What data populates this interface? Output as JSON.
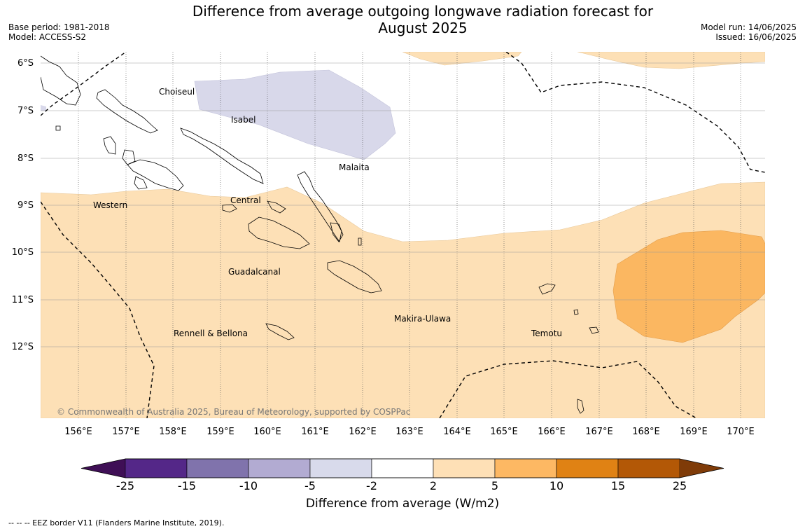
{
  "header": {
    "title_line1": "Difference from average outgoing longwave radiation forecast for",
    "title_line2": "August 2025",
    "base_period": "Base period: 1981-2018",
    "model": "Model: ACCESS-S2",
    "model_run": "Model run: 14/06/2025",
    "issued": "Issued: 16/06/2025"
  },
  "map": {
    "lat_labels": [
      "6°S",
      "7°S",
      "8°S",
      "9°S",
      "10°S",
      "11°S",
      "12°S"
    ],
    "lon_labels": [
      "156°E",
      "157°E",
      "158°E",
      "159°E",
      "160°E",
      "161°E",
      "162°E",
      "163°E",
      "164°E",
      "165°E",
      "166°E",
      "167°E",
      "168°E",
      "169°E",
      "170°E"
    ],
    "province_labels": {
      "choiseul": "Choiseul",
      "isabel": "Isabel",
      "malaita": "Malaita",
      "western": "Western",
      "central": "Central",
      "guadalcanal": "Guadalcanal",
      "makira_ulawa": "Makira-Ulawa",
      "rennell_bellona": "Rennell & Bellona",
      "temotu": "Temotu"
    },
    "copyright": "© Commonwealth of Australia 2025, Bureau of Meteorology, supported by COSPPac",
    "fill_colors": {
      "band_-5_-2": "#d8d8ea",
      "band_2_5": "#fde0b6",
      "band_5_10": "#fbb761"
    }
  },
  "colorbar": {
    "title": "Difference from average (W/m2)",
    "tick_labels": [
      "-25",
      "-15",
      "-10",
      "-5",
      "-2",
      "2",
      "5",
      "10",
      "15",
      "25"
    ],
    "colors": [
      "#3f0f56",
      "#542788",
      "#8073ac",
      "#b2abd2",
      "#d8daeb",
      "#ffffff",
      "#fee0b6",
      "#fdb863",
      "#e08214",
      "#b35806",
      "#7f3b08"
    ]
  },
  "footnote": "--  --  -- EEZ border V11 (Flanders Marine Institute, 2019)."
}
